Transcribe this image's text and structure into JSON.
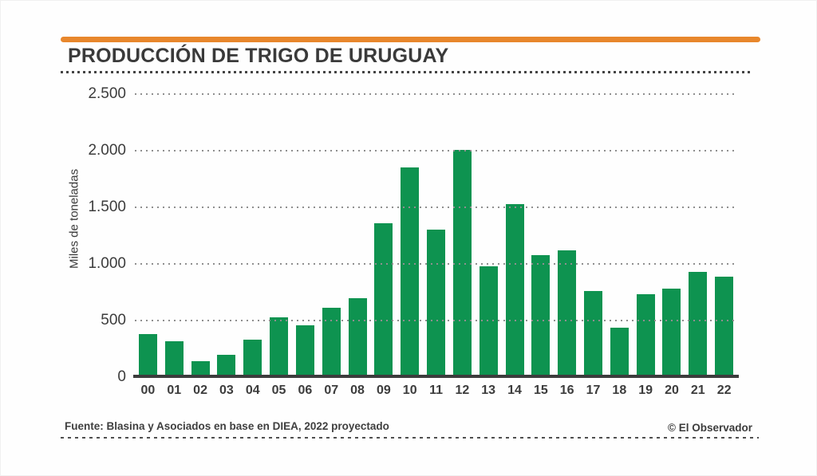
{
  "header": {
    "title": "PRODUCCIÓN DE TRIGO DE URUGUAY",
    "accent_color": "#E8872C"
  },
  "chart_data": {
    "type": "bar",
    "title": "PRODUCCIÓN DE TRIGO DE URUGUAY",
    "ylabel": "Miles de toneladas",
    "xlabel": "",
    "categories": [
      "00",
      "01",
      "02",
      "03",
      "04",
      "05",
      "06",
      "07",
      "08",
      "09",
      "10",
      "11",
      "12",
      "13",
      "14",
      "15",
      "16",
      "17",
      "18",
      "19",
      "20",
      "21",
      "22"
    ],
    "values": [
      380,
      320,
      140,
      200,
      330,
      530,
      460,
      610,
      700,
      1360,
      1850,
      1300,
      2010,
      980,
      1530,
      1080,
      1120,
      760,
      440,
      730,
      780,
      930,
      890
    ],
    "ylim": [
      0,
      2500
    ],
    "ytick_values": [
      0,
      500,
      1000,
      1500,
      2000,
      2500
    ],
    "ytick_labels": [
      "0",
      "500",
      "1.000",
      "1.500",
      "2.000",
      "2.500"
    ],
    "grid": "horizontal-dotted",
    "legend": "none",
    "bar_color": "#0E9350",
    "axis_color": "#3D3D3D",
    "gridline_color": "#8F8F8F"
  },
  "footer": {
    "source": "Fuente: Blasina y Asociados en base en DIEA, 2022 proyectado",
    "credit": "© El Observador"
  }
}
